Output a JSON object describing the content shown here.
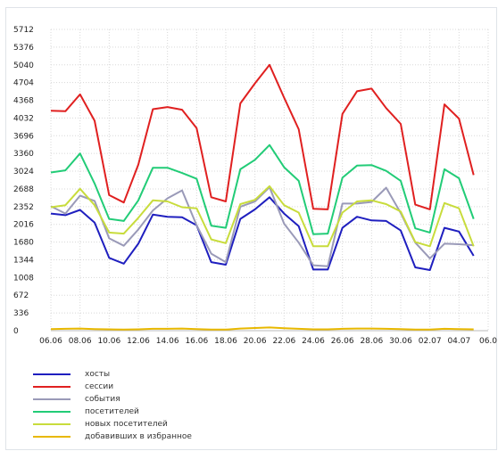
{
  "chart_data": {
    "type": "line",
    "ylim": [
      0,
      5712
    ],
    "yticks": [
      "0",
      "336",
      "672",
      "1008",
      "1344",
      "1680",
      "2016",
      "2352",
      "2688",
      "3024",
      "3360",
      "3696",
      "4032",
      "4368",
      "4704",
      "5040",
      "5376",
      "5712"
    ],
    "xticks": [
      "06.06",
      "08.06",
      "10.06",
      "12.06",
      "14.06",
      "16.06",
      "18.06",
      "20.06",
      "22.06",
      "24.06",
      "26.06",
      "28.06",
      "30.06",
      "02.07",
      "04.07",
      "06.0"
    ],
    "grid": true,
    "legend_position": "bottom-left",
    "x": [
      "06.06",
      "07.06",
      "08.06",
      "09.06",
      "10.06",
      "11.06",
      "12.06",
      "13.06",
      "14.06",
      "15.06",
      "16.06",
      "17.06",
      "18.06",
      "19.06",
      "20.06",
      "21.06",
      "22.06",
      "23.06",
      "24.06",
      "25.06",
      "26.06",
      "27.06",
      "28.06",
      "29.06",
      "30.06",
      "01.07",
      "02.07",
      "03.07",
      "04.07",
      "05.07",
      "06.07"
    ],
    "series": [
      {
        "name": "хосты",
        "color": "#1f1fbf",
        "values": [
          2220,
          2190,
          2290,
          2050,
          1380,
          1270,
          1650,
          2200,
          2160,
          2150,
          2000,
          1300,
          1250,
          2120,
          2300,
          2530,
          2220,
          1980,
          1160,
          1160,
          1950,
          2160,
          2090,
          2080,
          1900,
          1200,
          1150,
          1950,
          1880,
          1420,
          null
        ]
      },
      {
        "name": "сессии",
        "color": "#e02020",
        "values": [
          4170,
          4160,
          4480,
          3980,
          2570,
          2430,
          3150,
          4200,
          4240,
          4190,
          3840,
          2530,
          2450,
          4310,
          4690,
          5040,
          4420,
          3820,
          2310,
          2300,
          4110,
          4540,
          4590,
          4220,
          3920,
          2390,
          2300,
          4290,
          4020,
          2950,
          null
        ]
      },
      {
        "name": "события",
        "color": "#9a9ab8",
        "values": [
          2360,
          2220,
          2560,
          2460,
          1750,
          1610,
          1920,
          2280,
          2510,
          2660,
          2000,
          1460,
          1300,
          2350,
          2450,
          2720,
          2030,
          1670,
          1240,
          1220,
          2410,
          2410,
          2440,
          2710,
          2230,
          1670,
          1370,
          1650,
          1640,
          1620,
          null
        ]
      },
      {
        "name": "посетителей",
        "color": "#22cc77",
        "values": [
          3000,
          3040,
          3360,
          2790,
          2120,
          2080,
          2470,
          3090,
          3090,
          2990,
          2880,
          1990,
          1950,
          3060,
          3240,
          3520,
          3100,
          2840,
          1830,
          1840,
          2900,
          3130,
          3140,
          3030,
          2840,
          1940,
          1860,
          3060,
          2890,
          2120,
          null
        ]
      },
      {
        "name": "новых посетителей",
        "color": "#c8dc3c",
        "values": [
          2340,
          2380,
          2690,
          2380,
          1860,
          1840,
          2140,
          2470,
          2450,
          2340,
          2320,
          1730,
          1660,
          2400,
          2480,
          2740,
          2380,
          2240,
          1600,
          1600,
          2240,
          2450,
          2470,
          2400,
          2260,
          1680,
          1600,
          2420,
          2320,
          1600,
          null
        ]
      },
      {
        "name": "добавивших в избранное",
        "color": "#e8b800",
        "values": [
          30,
          35,
          40,
          30,
          25,
          20,
          25,
          35,
          35,
          40,
          30,
          20,
          20,
          40,
          50,
          60,
          45,
          35,
          25,
          25,
          35,
          40,
          40,
          35,
          30,
          20,
          20,
          35,
          30,
          25,
          null
        ]
      }
    ]
  }
}
